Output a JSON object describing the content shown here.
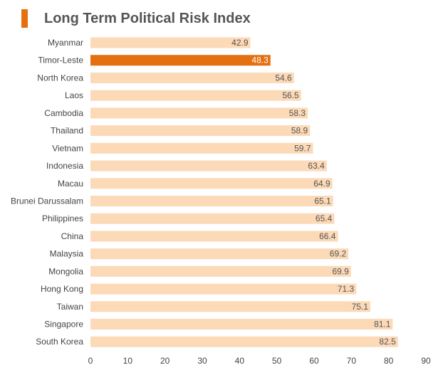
{
  "colors": {
    "accent": "#E4700F",
    "bar": "#FCD9B7",
    "highlight_text": "#FFFFFF",
    "value_text": "#555555"
  },
  "chart_data": {
    "type": "bar",
    "orientation": "horizontal",
    "title": "Long Term Political Risk Index",
    "xlabel": "",
    "ylabel": "",
    "xlim": [
      0,
      90
    ],
    "xticks": [
      0,
      10,
      20,
      30,
      40,
      50,
      60,
      70,
      80,
      90
    ],
    "grid": false,
    "highlight": "Timor-Leste",
    "categories": [
      "Myanmar",
      "Timor-Leste",
      "North Korea",
      "Laos",
      "Cambodia",
      "Thailand",
      "Vietnam",
      "Indonesia",
      "Macau",
      "Brunei Darussalam",
      "Philippines",
      "China",
      "Malaysia",
      "Mongolia",
      "Hong Kong",
      "Taiwan",
      "Singapore",
      "South Korea"
    ],
    "values": [
      42.9,
      48.3,
      54.6,
      56.5,
      58.3,
      58.9,
      59.7,
      63.4,
      64.9,
      65.1,
      65.4,
      66.4,
      69.2,
      69.9,
      71.3,
      75.1,
      81.1,
      82.5
    ],
    "value_labels": [
      "42.9",
      "48.3",
      "54.6",
      "56.5",
      "58.3",
      "58.9",
      "59.7",
      "63.4",
      "64.9",
      "65.1",
      "65.4",
      "66.4",
      "69.2",
      "69.9",
      "71.3",
      "75.1",
      "81.1",
      "82.5"
    ]
  }
}
